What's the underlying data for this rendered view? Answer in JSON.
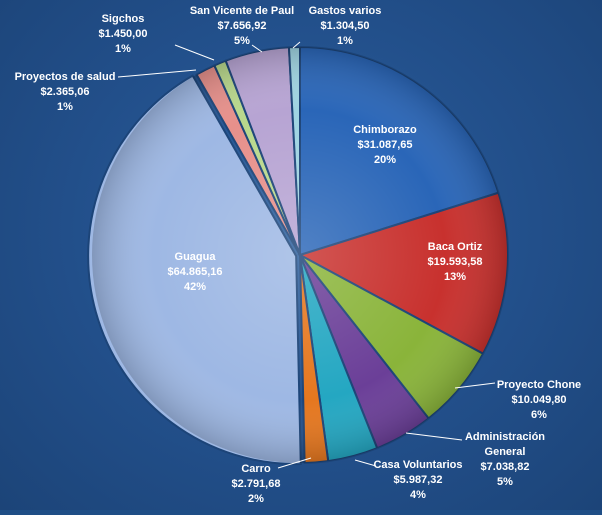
{
  "chart_data": {
    "type": "pie",
    "currency_note": "",
    "slices": [
      {
        "label": "Chimborazo",
        "amount": "$31.087,65",
        "percent": "20%",
        "value": 31087.65,
        "color": "#2a66b8"
      },
      {
        "label": "Baca Ortiz",
        "amount": "$19.593,58",
        "percent": "13%",
        "value": 19593.58,
        "color": "#c8312e"
      },
      {
        "label": "Proyecto Chone",
        "amount": "$10.049,80",
        "percent": "6%",
        "value": 10049.8,
        "color": "#8ab43a"
      },
      {
        "label": "Administración General",
        "amount": "$7.038,82",
        "percent": "5%",
        "value": 7038.82,
        "color": "#6b3f98"
      },
      {
        "label": "Casa Voluntarios",
        "amount": "$5.987,32",
        "percent": "4%",
        "value": 5987.32,
        "color": "#24a7c2"
      },
      {
        "label": "Carro",
        "amount": "$2.791,68",
        "percent": "2%",
        "value": 2791.68,
        "color": "#e5771f"
      },
      {
        "label": "Guagua",
        "amount": "$64.865,16",
        "percent": "42%",
        "value": 64865.16,
        "color": "#9eb8e4"
      },
      {
        "label": "Proyectos de salud",
        "amount": "$2.365,06",
        "percent": "1%",
        "value": 2365.06,
        "color": "#e7908b"
      },
      {
        "label": "Sigchos",
        "amount": "$1.450,00",
        "percent": "1%",
        "value": 1450.0,
        "color": "#b9d88c"
      },
      {
        "label": "San Vicente de Paul",
        "amount": "$7.656,92",
        "percent": "5%",
        "value": 7656.92,
        "color": "#b7a4d3"
      },
      {
        "label": "Gastos varios",
        "amount": "$1.304,50",
        "percent": "1%",
        "value": 1304.5,
        "color": "#9fd4e2"
      }
    ]
  }
}
